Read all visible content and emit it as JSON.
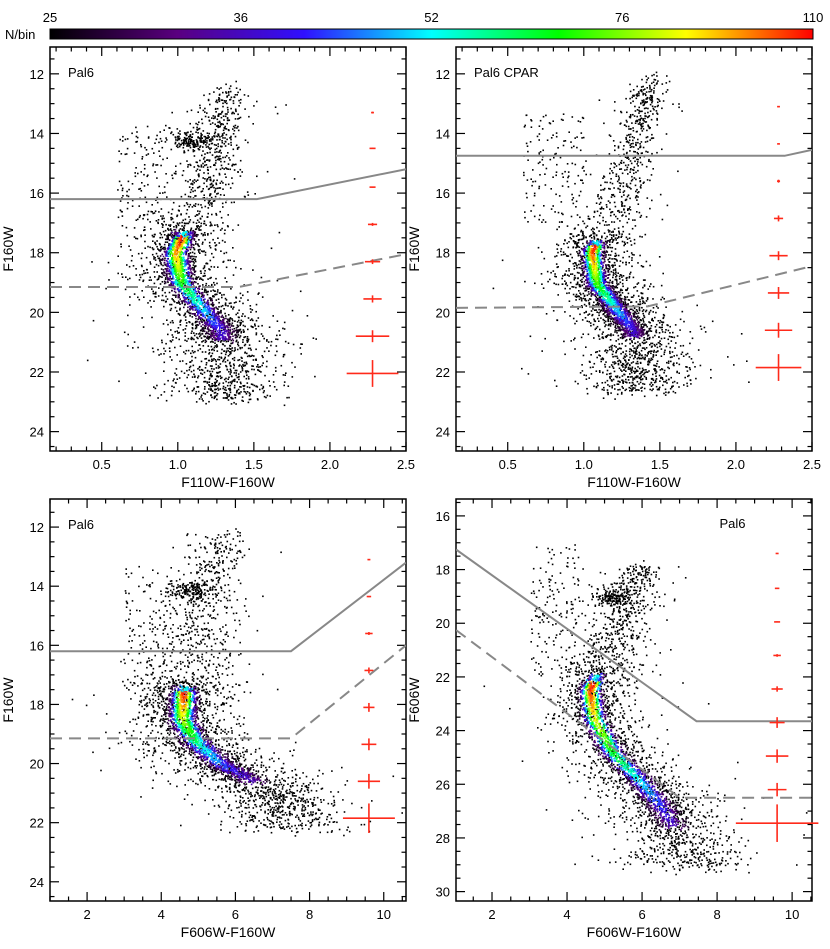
{
  "colorbar": {
    "label": "N/bin",
    "ticks": [
      "25",
      "36",
      "52",
      "76",
      "110"
    ],
    "range": [
      25,
      110
    ],
    "scale": "log",
    "colors": [
      "#000000",
      "#5a0080",
      "#3010ff",
      "#00ffff",
      "#00ff00",
      "#ffff00",
      "#ff0000"
    ]
  },
  "chart_data": [
    {
      "type": "scatter",
      "title": "Pal6",
      "xlabel": "F110W-F160W",
      "ylabel": "F160W",
      "xlim": [
        0.16,
        2.5
      ],
      "ylim": [
        24.65,
        11.1
      ],
      "x_ticks": [
        "0.5",
        "1.0",
        "1.5",
        "2.0",
        "2.5"
      ],
      "x_tick_values": [
        0.5,
        1.0,
        1.5,
        2.0,
        2.5
      ],
      "y_ticks": [
        "12",
        "14",
        "16",
        "18",
        "20",
        "22",
        "24"
      ],
      "y_tick_values": [
        12,
        14,
        16,
        18,
        20,
        22,
        24
      ],
      "x_minor": 0.1,
      "y_minor": 0.5,
      "solid_line": [
        [
          0.16,
          16.2
        ],
        [
          1.52,
          16.2
        ],
        [
          2.5,
          15.2
        ]
      ],
      "dashed_line": [
        [
          0.16,
          19.15
        ],
        [
          1.4,
          19.15
        ],
        [
          2.5,
          18.05
        ]
      ],
      "ridge": [
        [
          1.33,
          12.4
        ],
        [
          1.26,
          14
        ],
        [
          1.18,
          16
        ],
        [
          1.05,
          17.2
        ],
        [
          0.98,
          18.0
        ],
        [
          1.02,
          19.0
        ],
        [
          1.15,
          19.8
        ],
        [
          1.28,
          20.6
        ],
        [
          1.3,
          21.5
        ],
        [
          1.3,
          22.6
        ]
      ],
      "core_mag": [
        17.3,
        20.9
      ],
      "sigma": [
        0.04,
        0.13
      ],
      "red_clump": [
        1.08,
        14.2
      ],
      "field": {
        "x": [
          0.6,
          0.95
        ],
        "y": [
          13.7,
          17.5
        ]
      },
      "errors": {
        "x": 2.28,
        "y": [
          13.3,
          14.5,
          15.8,
          17.05,
          18.3,
          19.55,
          20.8,
          22.05
        ],
        "xerr": [
          0.004,
          0.02,
          0.02,
          0.03,
          0.05,
          0.06,
          0.11,
          0.17
        ],
        "yerr": [
          0.03,
          0.02,
          0.02,
          0.05,
          0.08,
          0.12,
          0.2,
          0.45
        ]
      }
    },
    {
      "type": "scatter",
      "title": "Pal6 CPAR",
      "xlabel": "F110W-F160W",
      "ylabel": "F160W",
      "xlim": [
        0.16,
        2.5
      ],
      "ylim": [
        24.65,
        11.1
      ],
      "x_ticks": [
        "0.5",
        "1.0",
        "1.5",
        "2.0",
        "2.5"
      ],
      "x_tick_values": [
        0.5,
        1.0,
        1.5,
        2.0,
        2.5
      ],
      "y_ticks": [
        "12",
        "14",
        "16",
        "18",
        "20",
        "22",
        "24"
      ],
      "y_tick_values": [
        12,
        14,
        16,
        18,
        20,
        22,
        24
      ],
      "x_minor": 0.1,
      "y_minor": 0.5,
      "solid_line": [
        [
          0.16,
          14.75
        ],
        [
          2.32,
          14.75
        ],
        [
          2.5,
          14.55
        ]
      ],
      "dashed_line": [
        [
          0.16,
          19.85
        ],
        [
          1.42,
          19.8
        ],
        [
          2.5,
          18.45
        ]
      ],
      "ridge": [
        [
          1.45,
          12.1
        ],
        [
          1.35,
          13.5
        ],
        [
          1.28,
          15
        ],
        [
          1.22,
          16.5
        ],
        [
          1.1,
          17.3
        ],
        [
          1.05,
          18.0
        ],
        [
          1.08,
          19.0
        ],
        [
          1.2,
          19.8
        ],
        [
          1.32,
          20.6
        ],
        [
          1.35,
          21.5
        ],
        [
          1.35,
          22.4
        ]
      ],
      "core_mag": [
        17.6,
        20.8
      ],
      "sigma": [
        0.035,
        0.11
      ],
      "red_clump": null,
      "field": {
        "x": [
          0.6,
          1.0
        ],
        "y": [
          13.3,
          17.0
        ]
      },
      "errors": {
        "x": 2.28,
        "y": [
          13.1,
          14.35,
          15.6,
          16.85,
          18.1,
          19.35,
          20.6,
          21.85
        ],
        "xerr": [
          0.004,
          0.005,
          0.01,
          0.03,
          0.06,
          0.07,
          0.09,
          0.15
        ],
        "yerr": [
          0.02,
          0.02,
          0.05,
          0.1,
          0.15,
          0.2,
          0.25,
          0.45
        ]
      }
    },
    {
      "type": "scatter",
      "title": "Pal6",
      "xlabel": "F606W-F160W",
      "ylabel": "F160W",
      "xlim": [
        1.0,
        10.6
      ],
      "ylim": [
        24.65,
        11.05
      ],
      "x_ticks": [
        "2",
        "4",
        "6",
        "8",
        "10"
      ],
      "x_tick_values": [
        2,
        4,
        6,
        8,
        10
      ],
      "y_ticks": [
        "12",
        "14",
        "16",
        "18",
        "20",
        "22",
        "24"
      ],
      "y_tick_values": [
        12,
        14,
        16,
        18,
        20,
        22,
        24
      ],
      "x_minor": 0.5,
      "y_minor": 0.5,
      "solid_line": [
        [
          1.0,
          16.2
        ],
        [
          7.5,
          16.2
        ],
        [
          10.6,
          13.2
        ]
      ],
      "dashed_line": [
        [
          1.0,
          19.15
        ],
        [
          7.5,
          19.15
        ],
        [
          10.6,
          16.0
        ]
      ],
      "ridge": [
        [
          5.6,
          12.2
        ],
        [
          5.35,
          13.5
        ],
        [
          5.1,
          15
        ],
        [
          4.9,
          16.5
        ],
        [
          4.6,
          17.5
        ],
        [
          4.55,
          18.5
        ],
        [
          4.95,
          19.3
        ],
        [
          5.6,
          20.0
        ],
        [
          6.5,
          20.6
        ],
        [
          7.2,
          21.2
        ],
        [
          7.4,
          21.9
        ]
      ],
      "core_mag": [
        17.4,
        20.6
      ],
      "sigma": [
        0.2,
        0.55
      ],
      "red_clump": [
        4.8,
        14.1
      ],
      "field": {
        "x": [
          3.0,
          4.3
        ],
        "y": [
          13.3,
          17.5
        ]
      },
      "errors": {
        "x": 9.6,
        "y": [
          13.1,
          14.35,
          15.6,
          16.85,
          18.1,
          19.35,
          20.6,
          21.85
        ],
        "xerr": [
          0.04,
          0.06,
          0.1,
          0.12,
          0.15,
          0.2,
          0.3,
          0.7
        ],
        "yerr": [
          0.02,
          0.02,
          0.05,
          0.1,
          0.15,
          0.2,
          0.25,
          0.5
        ]
      }
    },
    {
      "type": "scatter",
      "title": "Pal6",
      "xlabel": "F606W-F160W",
      "ylabel": "F606W",
      "xlim": [
        1.04,
        10.53
      ],
      "ylim": [
        30.35,
        15.37
      ],
      "x_ticks": [
        "2",
        "4",
        "6",
        "8",
        "10"
      ],
      "x_tick_values": [
        2,
        4,
        6,
        8,
        10
      ],
      "y_ticks": [
        "16",
        "18",
        "20",
        "22",
        "24",
        "26",
        "28",
        "30"
      ],
      "y_tick_values": [
        16,
        18,
        20,
        22,
        24,
        26,
        28,
        30
      ],
      "x_minor": 0.5,
      "y_minor": 0.5,
      "solid_line": [
        [
          1.04,
          17.25
        ],
        [
          7.45,
          23.65
        ],
        [
          10.53,
          23.65
        ]
      ],
      "dashed_line": [
        [
          1.04,
          20.25
        ],
        [
          7.0,
          26.5
        ],
        [
          10.53,
          26.5
        ]
      ],
      "ridge": [
        [
          6.0,
          17.8
        ],
        [
          5.6,
          19.0
        ],
        [
          5.2,
          20.5
        ],
        [
          4.8,
          21.8
        ],
        [
          4.6,
          22.5
        ],
        [
          4.7,
          23.5
        ],
        [
          5.2,
          24.8
        ],
        [
          5.9,
          25.8
        ],
        [
          6.6,
          27.0
        ],
        [
          7.0,
          28.0
        ],
        [
          7.2,
          28.8
        ]
      ],
      "core_mag": [
        21.9,
        27.6
      ],
      "sigma": [
        0.2,
        0.5
      ],
      "red_clump": [
        5.2,
        19.0
      ],
      "field": {
        "x": [
          3.0,
          4.3
        ],
        "y": [
          17.0,
          22.0
        ]
      },
      "errors": {
        "x": 9.6,
        "y": [
          17.4,
          18.7,
          19.95,
          21.2,
          22.45,
          23.7,
          24.95,
          26.2,
          27.45
        ],
        "xerr": [
          0.04,
          0.06,
          0.08,
          0.1,
          0.15,
          0.2,
          0.3,
          0.25,
          1.1
        ],
        "yerr": [
          0.02,
          0.02,
          0.02,
          0.05,
          0.1,
          0.2,
          0.25,
          0.25,
          0.7
        ]
      }
    }
  ]
}
